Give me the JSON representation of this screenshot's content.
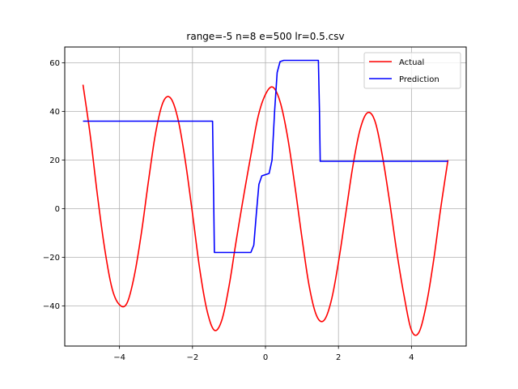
{
  "chart_data": {
    "type": "line",
    "title": "range=-5 n=8 e=500 lr=0.5.csv",
    "xlabel": "",
    "ylabel": "",
    "xlim": [
      -5.5,
      5.5
    ],
    "ylim": [
      -56.5,
      66.5
    ],
    "xticks": [
      -4,
      -2,
      0,
      2,
      4
    ],
    "xtick_labels": [
      "−4",
      "−2",
      "0",
      "2",
      "4"
    ],
    "yticks": [
      -40,
      -20,
      0,
      20,
      40,
      60
    ],
    "ytick_labels": [
      "−40",
      "−20",
      "0",
      "20",
      "40",
      "60"
    ],
    "grid": true,
    "legend_position": "top-right",
    "series": [
      {
        "name": "Actual",
        "color": "#ff0000",
        "x": [
          -5.0,
          -4.8,
          -4.6,
          -4.4,
          -4.2,
          -4.0,
          -3.8,
          -3.6,
          -3.4,
          -3.2,
          -3.0,
          -2.8,
          -2.6,
          -2.4,
          -2.2,
          -2.0,
          -1.8,
          -1.6,
          -1.4,
          -1.2,
          -1.0,
          -0.8,
          -0.6,
          -0.4,
          -0.2,
          0.0,
          0.2,
          0.4,
          0.6,
          0.8,
          1.0,
          1.2,
          1.4,
          1.6,
          1.8,
          2.0,
          2.2,
          2.4,
          2.6,
          2.8,
          3.0,
          3.2,
          3.4,
          3.6,
          3.8,
          4.0,
          4.2,
          4.4,
          4.6,
          4.8,
          5.0
        ],
        "y": [
          51.0,
          30.0,
          5.0,
          -17.0,
          -33.0,
          -39.5,
          -39.0,
          -28.0,
          -10.0,
          12.0,
          32.0,
          44.0,
          45.5,
          37.0,
          20.0,
          -2.0,
          -25.0,
          -42.0,
          -50.0,
          -46.0,
          -32.0,
          -13.0,
          5.0,
          22.0,
          38.0,
          47.0,
          50.0,
          44.0,
          30.0,
          10.0,
          -12.0,
          -32.0,
          -44.0,
          -46.0,
          -38.0,
          -22.0,
          -2.0,
          18.0,
          33.0,
          39.5,
          36.0,
          22.0,
          3.0,
          -18.0,
          -36.0,
          -50.0,
          -51.0,
          -40.0,
          -22.0,
          0.0,
          20.0
        ],
        "x_alt": [
          -5.0,
          -4.6,
          -4.2,
          -3.8,
          -3.4,
          -3.0,
          -2.6,
          -2.2,
          -1.8,
          -1.4,
          -1.0,
          -0.8,
          -0.6,
          -0.2,
          0.2,
          0.6,
          0.8,
          1.0,
          1.4,
          1.8,
          2.2,
          2.6,
          3.0,
          3.4,
          3.8,
          4.2,
          4.6,
          5.0
        ]
      },
      {
        "name": "Prediction",
        "color": "#0000ff",
        "x": [
          -5.0,
          -1.45,
          -1.42,
          -1.4,
          -0.4,
          -0.32,
          -0.25,
          -0.18,
          -0.1,
          0.1,
          0.18,
          0.25,
          0.32,
          0.4,
          0.5,
          1.45,
          1.48,
          1.5,
          5.0
        ],
        "y": [
          36.0,
          36.0,
          5.0,
          -18.0,
          -18.0,
          -15.0,
          -2.0,
          10.0,
          13.5,
          14.5,
          20.0,
          40.0,
          56.0,
          60.5,
          61.0,
          61.0,
          40.0,
          19.5,
          19.5
        ]
      }
    ],
    "legend": [
      {
        "label": "Actual",
        "color": "#ff0000"
      },
      {
        "label": "Prediction",
        "color": "#0000ff"
      }
    ]
  }
}
